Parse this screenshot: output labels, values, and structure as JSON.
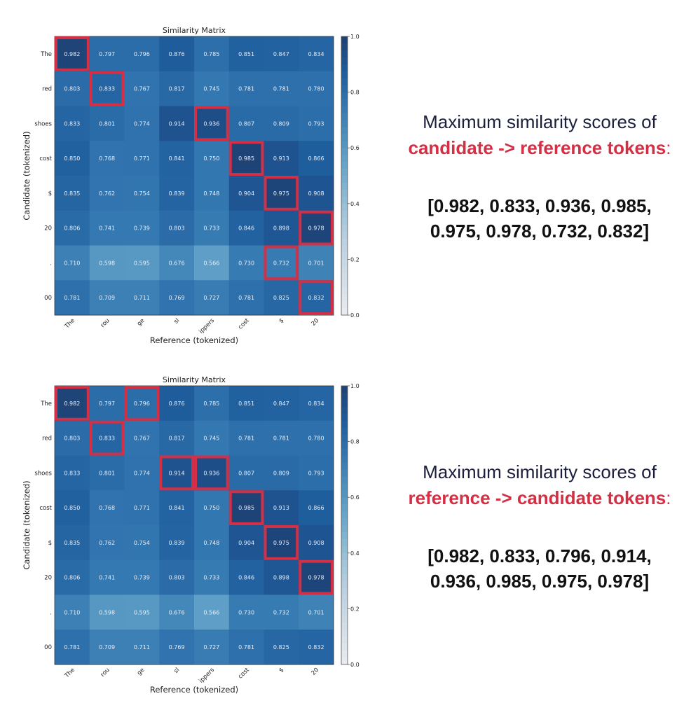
{
  "chart_data": [
    {
      "type": "heatmap",
      "title": "Similarity Matrix",
      "xlabel": "Reference (tokenized)",
      "ylabel": "Candidate (tokenized)",
      "x_categories": [
        "The",
        "rou",
        "ge",
        "sl",
        "ippers",
        "cost",
        "$",
        "20"
      ],
      "y_categories": [
        "The",
        "red",
        "shoes",
        "cost",
        "$",
        "20",
        ".",
        "00"
      ],
      "values": [
        [
          0.982,
          0.797,
          0.796,
          0.876,
          0.785,
          0.851,
          0.847,
          0.834
        ],
        [
          0.803,
          0.833,
          0.767,
          0.817,
          0.745,
          0.781,
          0.781,
          0.78
        ],
        [
          0.833,
          0.801,
          0.774,
          0.914,
          0.936,
          0.807,
          0.809,
          0.793
        ],
        [
          0.85,
          0.768,
          0.771,
          0.841,
          0.75,
          0.985,
          0.913,
          0.866
        ],
        [
          0.835,
          0.762,
          0.754,
          0.839,
          0.748,
          0.904,
          0.975,
          0.908
        ],
        [
          0.806,
          0.741,
          0.739,
          0.803,
          0.733,
          0.846,
          0.898,
          0.978
        ],
        [
          0.71,
          0.598,
          0.595,
          0.676,
          0.566,
          0.73,
          0.732,
          0.701
        ],
        [
          0.781,
          0.709,
          0.711,
          0.769,
          0.727,
          0.781,
          0.825,
          0.832
        ]
      ],
      "colormap": "Blues",
      "vmin": 0.0,
      "vmax": 1.0,
      "colorbar_ticks": [
        "0.0",
        "0.2",
        "0.4",
        "0.6",
        "0.8",
        "1.0"
      ],
      "highlight_color": "#d32f45",
      "highlighted_cells": [
        [
          0,
          0
        ],
        [
          1,
          1
        ],
        [
          2,
          4
        ],
        [
          3,
          5
        ],
        [
          4,
          6
        ],
        [
          5,
          7
        ],
        [
          6,
          6
        ],
        [
          7,
          7
        ]
      ]
    },
    {
      "type": "heatmap",
      "title": "Similarity Matrix",
      "xlabel": "Reference (tokenized)",
      "ylabel": "Candidate (tokenized)",
      "x_categories": [
        "The",
        "rou",
        "ge",
        "sl",
        "ippers",
        "cost",
        "$",
        "20"
      ],
      "y_categories": [
        "The",
        "red",
        "shoes",
        "cost",
        "$",
        "20",
        ".",
        "00"
      ],
      "values": [
        [
          0.982,
          0.797,
          0.796,
          0.876,
          0.785,
          0.851,
          0.847,
          0.834
        ],
        [
          0.803,
          0.833,
          0.767,
          0.817,
          0.745,
          0.781,
          0.781,
          0.78
        ],
        [
          0.833,
          0.801,
          0.774,
          0.914,
          0.936,
          0.807,
          0.809,
          0.793
        ],
        [
          0.85,
          0.768,
          0.771,
          0.841,
          0.75,
          0.985,
          0.913,
          0.866
        ],
        [
          0.835,
          0.762,
          0.754,
          0.839,
          0.748,
          0.904,
          0.975,
          0.908
        ],
        [
          0.806,
          0.741,
          0.739,
          0.803,
          0.733,
          0.846,
          0.898,
          0.978
        ],
        [
          0.71,
          0.598,
          0.595,
          0.676,
          0.566,
          0.73,
          0.732,
          0.701
        ],
        [
          0.781,
          0.709,
          0.711,
          0.769,
          0.727,
          0.781,
          0.825,
          0.832
        ]
      ],
      "colormap": "Blues",
      "vmin": 0.0,
      "vmax": 1.0,
      "colorbar_ticks": [
        "0.0",
        "0.2",
        "0.4",
        "0.6",
        "0.8",
        "1.0"
      ],
      "highlight_color": "#d32f45",
      "highlighted_cells": [
        [
          0,
          0
        ],
        [
          0,
          2
        ],
        [
          1,
          1
        ],
        [
          2,
          3
        ],
        [
          2,
          4
        ],
        [
          3,
          5
        ],
        [
          4,
          6
        ],
        [
          5,
          7
        ]
      ]
    }
  ],
  "panels": [
    {
      "line1": "Maximum similarity scores of",
      "line2": "candidate -> reference tokens",
      "colon": ":",
      "scores": "[0.982, 0.833, 0.936, 0.985, 0.975, 0.978, 0.732, 0.832]"
    },
    {
      "line1": "Maximum similarity scores of",
      "line2": "reference -> candidate tokens",
      "colon": ":",
      "scores": "[0.982, 0.833, 0.796, 0.914, 0.936, 0.985, 0.975, 0.978]"
    }
  ],
  "colors": {
    "accent": "#d32f45",
    "heading": "#1b1f3b",
    "text": "#111111"
  }
}
